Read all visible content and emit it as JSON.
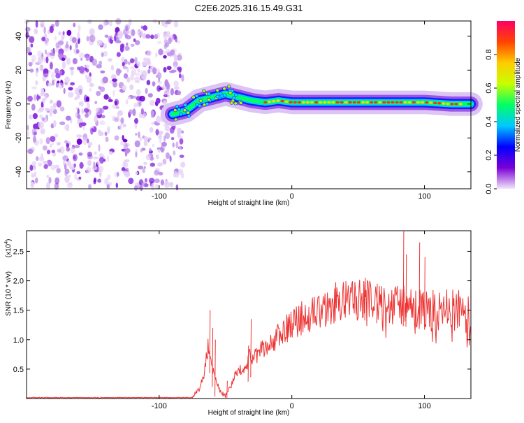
{
  "page": {
    "title": "C2E6.2025.316.15.49.G31"
  },
  "chart_data": [
    {
      "type": "heatmap",
      "name": "frequency-spectrogram",
      "title": "C2E6.2025.316.15.49.G31",
      "xlabel": "Height of straight line (km)",
      "ylabel": "Frequency (Hz)",
      "xlim": [
        -200,
        135
      ],
      "ylim": [
        -50,
        49
      ],
      "x_ticks": [
        -100,
        0,
        100
      ],
      "y_ticks": [
        40,
        20,
        0,
        -20,
        -40
      ],
      "colorbar": {
        "label": "Normalized spectral amplitude",
        "range": [
          0.0,
          1.0
        ],
        "ticks": [
          "0.0",
          "0.2",
          "0.4",
          "0.6",
          "0.8"
        ],
        "colors": [
          "#f2e6fa",
          "#7b00d6",
          "#0000ff",
          "#00c8ff",
          "#00ff66",
          "#c8ff00",
          "#ffcc00",
          "#ff4400",
          "#ff0066"
        ]
      },
      "ridge": {
        "x": [
          -90,
          -80,
          -70,
          -60,
          -50,
          -40,
          -30,
          -20,
          -10,
          0,
          20,
          40,
          60,
          80,
          100,
          120,
          135
        ],
        "freq": [
          -6,
          -4,
          2,
          4,
          6,
          4,
          2,
          1,
          2,
          1,
          1,
          1,
          1,
          1,
          1,
          0,
          0
        ]
      },
      "noise_region_x": [
        -200,
        -82
      ]
    },
    {
      "type": "line",
      "name": "snr-trace",
      "xlabel": "Height of straight line (km)",
      "ylabel": "SNR (10 * v/v)",
      "y_scale_label": "(x10",
      "y_scale_exponent": "4",
      "xlim": [
        -200,
        135
      ],
      "ylim": [
        0,
        2.85
      ],
      "x_ticks": [
        -100,
        0,
        100
      ],
      "y_ticks": [
        0.5,
        1.0,
        1.5,
        2.0,
        2.5
      ],
      "y_tick_labels": [
        "0.5",
        "1.0",
        "1.5",
        "2.0",
        "2.5"
      ],
      "color": "#ee3333",
      "baseline": {
        "x": [
          -200,
          -75
        ],
        "y": [
          0.01,
          0.02
        ]
      },
      "envelope": {
        "x": [
          -75,
          -70,
          -66,
          -63,
          -60,
          -57,
          -54,
          -50,
          -46,
          -40,
          -36,
          -32,
          -28,
          -24,
          -20,
          -15,
          -10,
          -5,
          0,
          10,
          20,
          30,
          40,
          50,
          60,
          70,
          80,
          90,
          100,
          110,
          120,
          130,
          135
        ],
        "y": [
          0.02,
          0.15,
          0.45,
          0.9,
          0.55,
          0.3,
          0.12,
          0.05,
          0.2,
          0.55,
          0.45,
          0.7,
          0.75,
          0.8,
          0.85,
          0.95,
          1.05,
          1.15,
          1.25,
          1.4,
          1.5,
          1.6,
          1.68,
          1.7,
          1.65,
          1.6,
          1.6,
          1.55,
          1.52,
          1.58,
          1.55,
          1.5,
          1.5
        ]
      },
      "spikes": {
        "x": [
          -62,
          -60,
          -58,
          -49,
          -33,
          -31,
          55,
          64,
          84,
          86,
          96,
          100
        ],
        "y": [
          1.5,
          1.2,
          1.0,
          0.3,
          0.9,
          1.35,
          2.05,
          1.95,
          2.85,
          2.45,
          2.65,
          2.4
        ]
      }
    }
  ]
}
